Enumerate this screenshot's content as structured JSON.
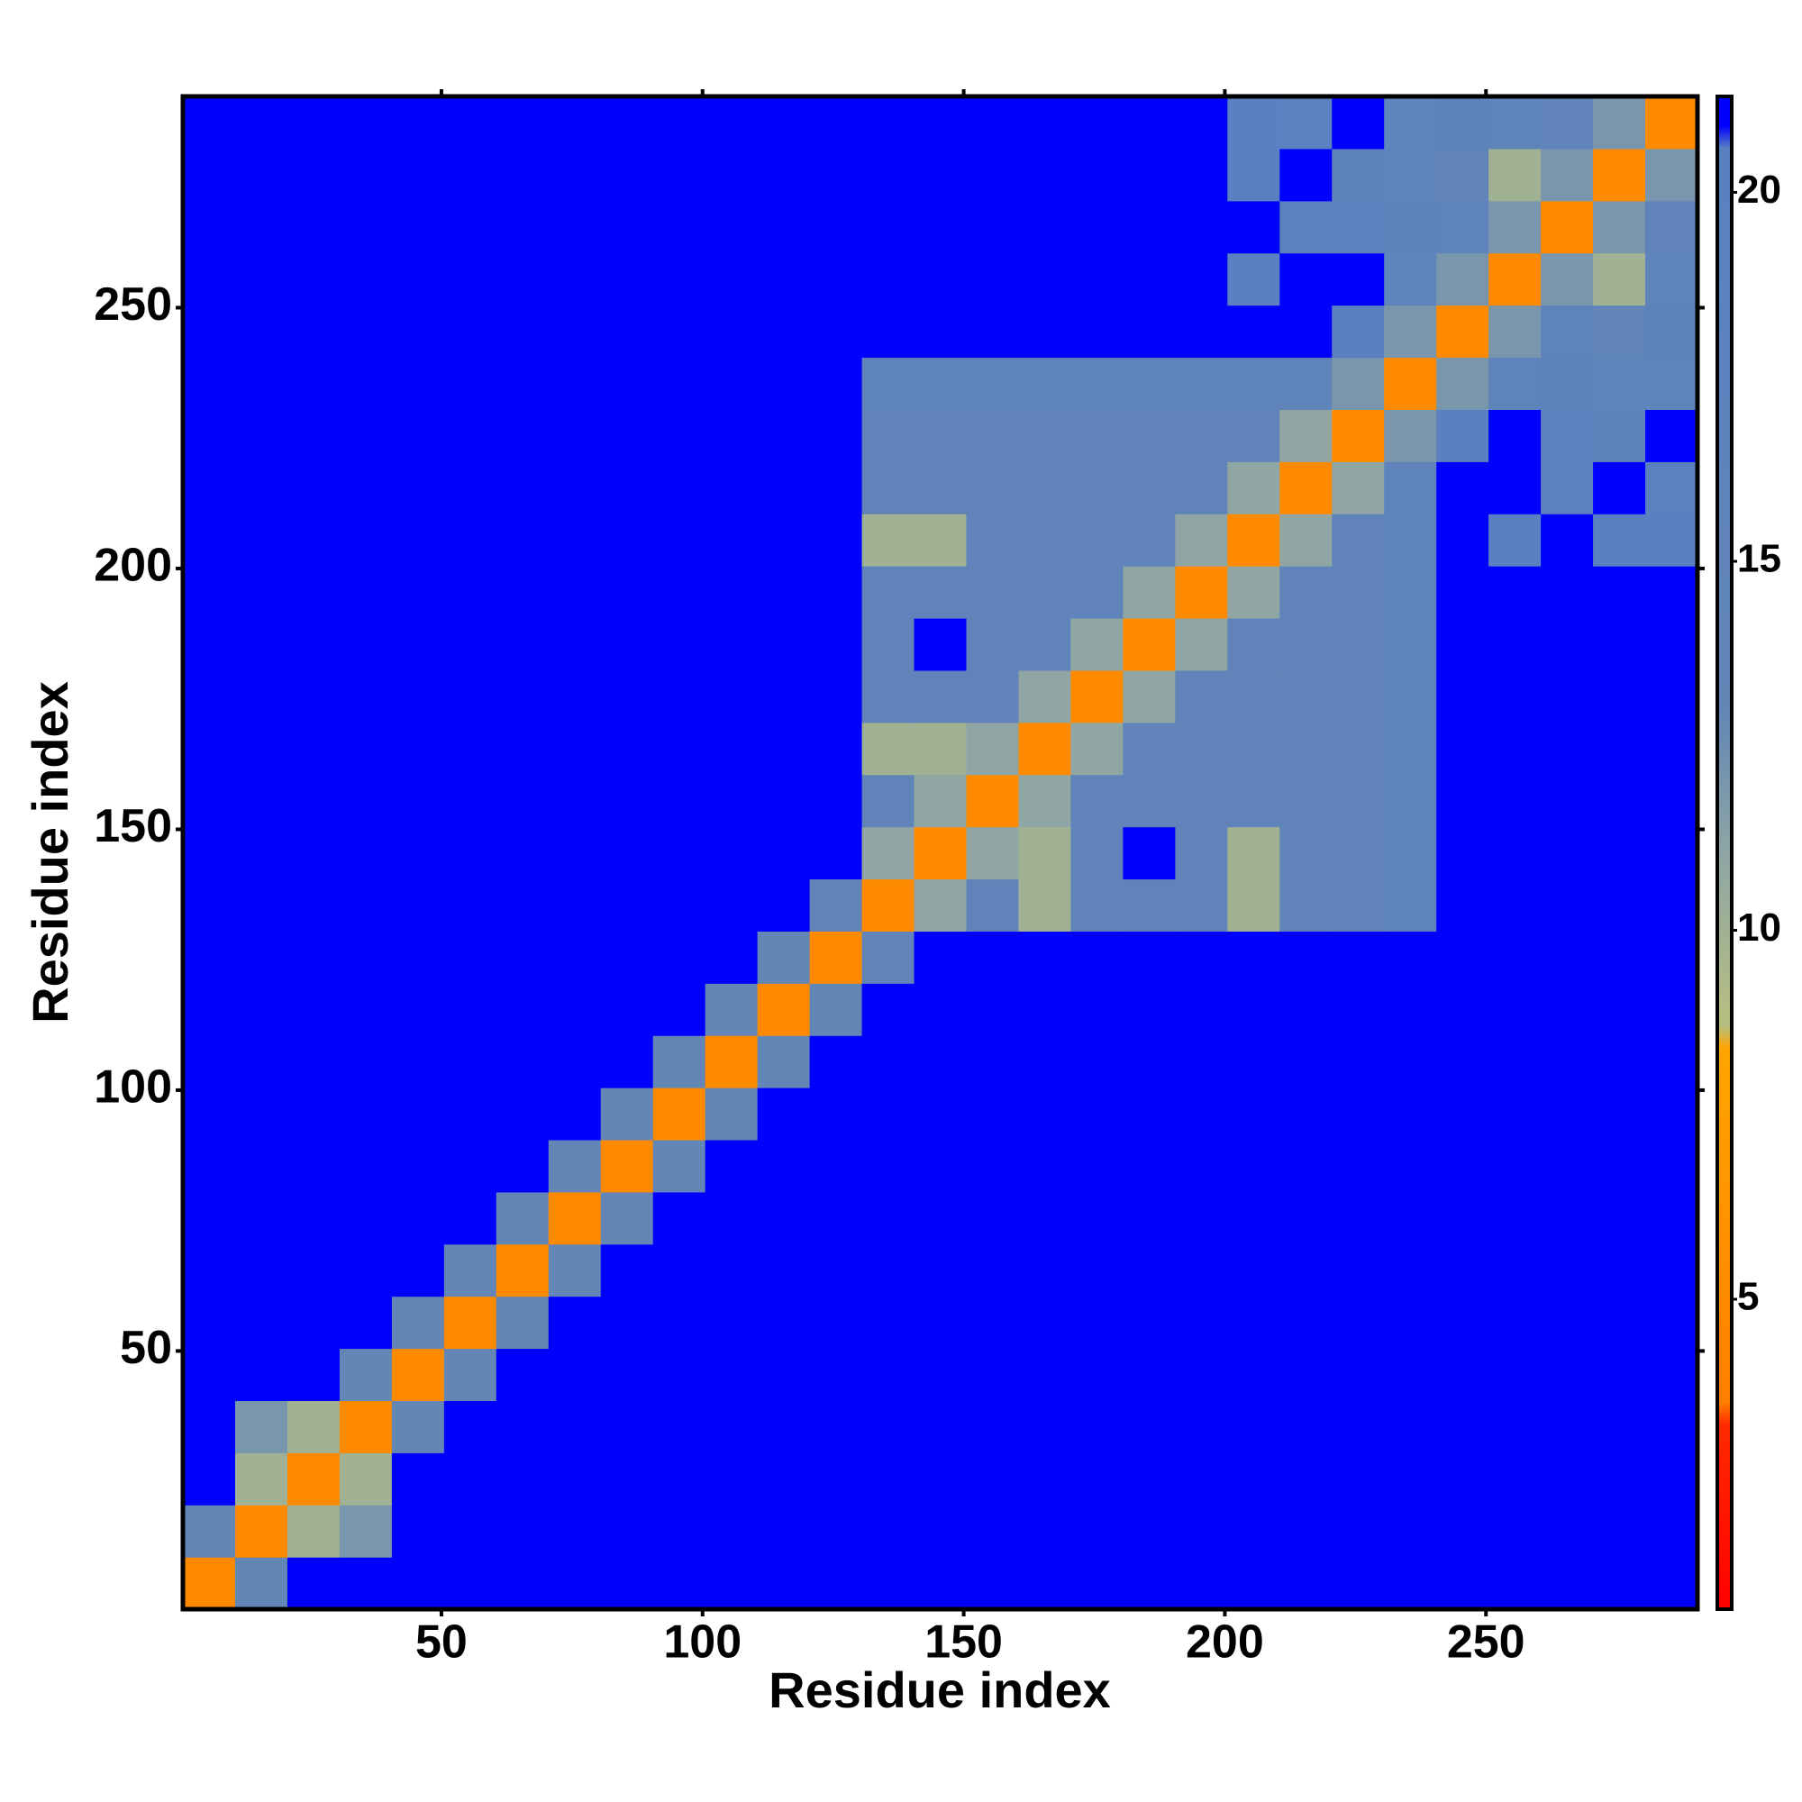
{
  "chart_data": {
    "type": "heatmap",
    "xlabel": "Residue index",
    "ylabel": "Residue index",
    "xbins": [
      0.5,
      10.5,
      20.5,
      30.5,
      40.5,
      50.5,
      60.5,
      70.5,
      80.5,
      90.5,
      100.5,
      110.5,
      120.5,
      130.5,
      140.5,
      150.5,
      160.5,
      170.5,
      180.5,
      190.5,
      200.5,
      210.5,
      220.5,
      230.5,
      240.5,
      250.5,
      260.5,
      270.5,
      280.5,
      290.5
    ],
    "ybins": [
      0.5,
      10.5,
      20.5,
      30.5,
      40.5,
      50.5,
      60.5,
      70.5,
      80.5,
      90.5,
      100.5,
      110.5,
      120.5,
      130.5,
      140.5,
      150.5,
      160.5,
      170.5,
      180.5,
      190.5,
      200.5,
      210.5,
      220.5,
      230.5,
      240.5,
      250.5,
      260.5,
      270.5,
      280.5,
      290.5
    ],
    "xlim": [
      0.5,
      290.5
    ],
    "ylim": [
      0.5,
      290.5
    ],
    "xticks": [
      50,
      100,
      150,
      200,
      250
    ],
    "yticks": [
      50,
      100,
      150,
      200,
      250
    ],
    "colorbar": {
      "lim": [
        0.8,
        21.3
      ],
      "ticks": [
        5,
        10,
        15,
        20
      ],
      "scale": [
        {
          "value": 0.8,
          "color": "#ff0000"
        },
        {
          "value": 3.3,
          "color": "#ff2a00"
        },
        {
          "value": 3.6,
          "color": "#ff7f00"
        },
        {
          "value": 8.4,
          "color": "#ffa500"
        },
        {
          "value": 8.7,
          "color": "#b8bf80"
        },
        {
          "value": 11,
          "color": "#8fa6a4"
        },
        {
          "value": 13,
          "color": "#6286b6"
        },
        {
          "value": 20.6,
          "color": "#5a80c2"
        },
        {
          "value": 20.9,
          "color": "#0000ff"
        },
        {
          "value": 21.3,
          "color": "#0000ff"
        }
      ]
    },
    "z": [
      [
        5,
        13,
        21,
        21,
        21,
        21,
        21,
        21,
        21,
        21,
        21,
        21,
        21,
        21,
        21,
        21,
        21,
        21,
        21,
        21,
        21,
        21,
        21,
        21,
        21,
        21,
        21,
        21,
        21
      ],
      [
        13,
        5,
        10,
        12,
        21,
        21,
        21,
        21,
        21,
        21,
        21,
        21,
        21,
        21,
        21,
        21,
        21,
        21,
        21,
        21,
        21,
        21,
        21,
        21,
        21,
        21,
        21,
        21,
        21
      ],
      [
        21,
        10,
        5,
        10,
        21,
        21,
        21,
        21,
        21,
        21,
        21,
        21,
        21,
        21,
        21,
        21,
        21,
        21,
        21,
        21,
        21,
        21,
        21,
        21,
        21,
        21,
        21,
        21,
        21
      ],
      [
        21,
        12,
        10,
        5,
        13,
        21,
        21,
        21,
        21,
        21,
        21,
        21,
        21,
        21,
        21,
        21,
        21,
        21,
        21,
        21,
        21,
        21,
        21,
        21,
        21,
        21,
        21,
        21,
        21
      ],
      [
        21,
        21,
        21,
        13,
        5,
        13,
        21,
        21,
        21,
        21,
        21,
        21,
        21,
        21,
        21,
        21,
        21,
        21,
        21,
        21,
        21,
        21,
        21,
        21,
        21,
        21,
        21,
        21,
        21
      ],
      [
        21,
        21,
        21,
        21,
        13,
        5,
        13,
        21,
        21,
        21,
        21,
        21,
        21,
        21,
        21,
        21,
        21,
        21,
        21,
        21,
        21,
        21,
        21,
        21,
        21,
        21,
        21,
        21,
        21
      ],
      [
        21,
        21,
        21,
        21,
        21,
        13,
        5,
        13,
        21,
        21,
        21,
        21,
        21,
        21,
        21,
        21,
        21,
        21,
        21,
        21,
        21,
        21,
        21,
        21,
        21,
        21,
        21,
        21,
        21
      ],
      [
        21,
        21,
        21,
        21,
        21,
        21,
        13,
        5,
        13,
        21,
        21,
        21,
        21,
        21,
        21,
        21,
        21,
        21,
        21,
        21,
        21,
        21,
        21,
        21,
        21,
        21,
        21,
        21,
        21
      ],
      [
        21,
        21,
        21,
        21,
        21,
        21,
        21,
        13,
        5,
        13,
        21,
        21,
        21,
        21,
        21,
        21,
        21,
        21,
        21,
        21,
        21,
        21,
        21,
        21,
        21,
        21,
        21,
        21,
        21
      ],
      [
        21,
        21,
        21,
        21,
        21,
        21,
        21,
        21,
        13,
        5,
        13,
        21,
        21,
        21,
        21,
        21,
        21,
        21,
        21,
        21,
        21,
        21,
        21,
        21,
        21,
        21,
        21,
        21,
        21
      ],
      [
        21,
        21,
        21,
        21,
        21,
        21,
        21,
        21,
        21,
        13,
        5,
        13,
        21,
        21,
        21,
        21,
        21,
        21,
        21,
        21,
        21,
        21,
        21,
        21,
        21,
        21,
        21,
        21,
        21
      ],
      [
        21,
        21,
        21,
        21,
        21,
        21,
        21,
        21,
        21,
        21,
        13,
        5,
        13,
        21,
        21,
        21,
        21,
        21,
        21,
        21,
        21,
        21,
        21,
        21,
        21,
        21,
        21,
        21,
        21
      ],
      [
        21,
        21,
        21,
        21,
        21,
        21,
        21,
        21,
        21,
        21,
        21,
        13,
        5,
        14,
        21,
        21,
        21,
        21,
        21,
        21,
        21,
        21,
        21,
        21,
        21,
        21,
        21,
        21,
        21
      ],
      [
        21,
        21,
        21,
        21,
        21,
        21,
        21,
        21,
        21,
        21,
        21,
        21,
        14,
        5,
        11,
        15,
        10,
        15,
        15,
        15,
        10,
        15,
        15,
        16,
        21,
        21,
        21,
        21,
        21
      ],
      [
        21,
        21,
        21,
        21,
        21,
        21,
        21,
        21,
        21,
        21,
        21,
        21,
        21,
        11,
        5,
        11,
        10,
        15,
        21,
        15,
        10,
        15,
        15,
        16,
        21,
        21,
        21,
        21,
        21
      ],
      [
        21,
        21,
        21,
        21,
        21,
        21,
        21,
        21,
        21,
        21,
        21,
        21,
        21,
        15,
        11,
        5,
        11,
        15,
        15,
        15,
        15,
        15,
        15,
        16,
        21,
        21,
        21,
        21,
        21
      ],
      [
        21,
        21,
        21,
        21,
        21,
        21,
        21,
        21,
        21,
        21,
        21,
        21,
        21,
        10,
        10,
        11,
        5,
        11,
        15,
        15,
        15,
        15,
        15,
        16,
        21,
        21,
        21,
        21,
        21
      ],
      [
        21,
        21,
        21,
        21,
        21,
        21,
        21,
        21,
        21,
        21,
        21,
        21,
        21,
        15,
        15,
        15,
        11,
        5,
        11,
        15,
        15,
        15,
        15,
        16,
        21,
        21,
        21,
        21,
        21
      ],
      [
        21,
        21,
        21,
        21,
        21,
        21,
        21,
        21,
        21,
        21,
        21,
        21,
        21,
        15,
        21,
        15,
        15,
        11,
        5,
        11,
        15,
        15,
        15,
        16,
        21,
        21,
        21,
        21,
        21
      ],
      [
        21,
        21,
        21,
        21,
        21,
        21,
        21,
        21,
        21,
        21,
        21,
        21,
        21,
        15,
        15,
        15,
        15,
        15,
        11,
        5,
        11,
        15,
        15,
        16,
        21,
        21,
        21,
        21,
        21
      ],
      [
        21,
        21,
        21,
        21,
        21,
        21,
        21,
        21,
        21,
        21,
        21,
        21,
        21,
        10,
        10,
        15,
        15,
        15,
        15,
        11,
        5,
        11,
        15,
        16,
        21,
        20,
        21,
        20,
        20
      ],
      [
        21,
        21,
        21,
        21,
        21,
        21,
        21,
        21,
        21,
        21,
        21,
        21,
        21,
        15,
        15,
        15,
        15,
        15,
        15,
        15,
        11,
        5,
        11,
        16,
        21,
        21,
        19,
        21,
        19
      ],
      [
        21,
        21,
        21,
        21,
        21,
        21,
        21,
        21,
        21,
        21,
        21,
        21,
        21,
        15,
        15,
        15,
        15,
        15,
        15,
        15,
        15,
        11,
        5,
        12,
        20,
        21,
        18,
        17,
        21
      ],
      [
        21,
        21,
        21,
        21,
        21,
        21,
        21,
        21,
        21,
        21,
        21,
        21,
        21,
        16,
        16,
        16,
        16,
        16,
        16,
        16,
        16,
        16,
        12,
        5,
        12,
        16,
        17,
        16,
        16
      ],
      [
        21,
        21,
        21,
        21,
        21,
        21,
        21,
        21,
        21,
        21,
        21,
        21,
        21,
        21,
        21,
        21,
        21,
        21,
        21,
        21,
        21,
        21,
        20,
        12,
        5,
        12,
        16,
        14,
        17
      ],
      [
        21,
        21,
        21,
        21,
        21,
        21,
        21,
        21,
        21,
        21,
        21,
        21,
        21,
        21,
        21,
        21,
        21,
        21,
        21,
        21,
        20,
        21,
        21,
        16,
        12,
        5,
        12,
        10,
        16
      ],
      [
        21,
        21,
        21,
        21,
        21,
        21,
        21,
        21,
        21,
        21,
        21,
        21,
        21,
        21,
        21,
        21,
        21,
        21,
        21,
        21,
        21,
        19,
        18,
        17,
        16,
        12,
        5,
        12,
        15
      ],
      [
        21,
        21,
        21,
        21,
        21,
        21,
        21,
        21,
        21,
        21,
        21,
        21,
        21,
        21,
        21,
        21,
        21,
        21,
        21,
        21,
        20,
        21,
        17,
        16,
        14,
        10,
        12,
        5,
        12
      ],
      [
        21,
        21,
        21,
        21,
        21,
        21,
        21,
        21,
        21,
        21,
        21,
        21,
        21,
        21,
        21,
        21,
        21,
        21,
        21,
        21,
        20,
        19,
        21,
        16,
        17,
        16,
        15,
        12,
        5
      ]
    ]
  }
}
